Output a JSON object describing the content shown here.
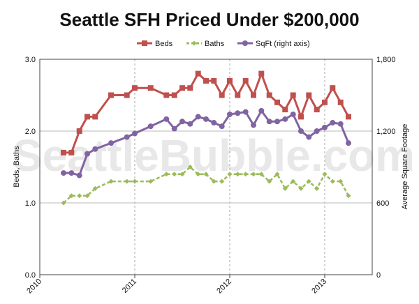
{
  "watermark": "SeattleBubble.com",
  "chart_data": {
    "type": "line",
    "title": "Seattle SFH Priced Under $200,000",
    "ylabel": "Beds, Baths",
    "y2label": "Average Square Footage",
    "ylim": [
      0,
      3
    ],
    "y2lim": [
      0,
      1800
    ],
    "yticks": [
      0,
      1,
      2,
      3
    ],
    "ytick_labels": [
      "0.0",
      "1.0",
      "2.0",
      "3.0"
    ],
    "y2ticks": [
      0,
      600,
      1200,
      1800
    ],
    "y2tick_labels": [
      "0",
      "600",
      "1,200",
      "1,800"
    ],
    "xlim": [
      2010.0,
      2013.5
    ],
    "xticks": [
      2010,
      2011,
      2012,
      2013
    ],
    "xtick_labels": [
      "2010",
      "2011",
      "2012",
      "2013"
    ],
    "grid": true,
    "legend_position": "top",
    "x": [
      2010.25,
      2010.333,
      2010.417,
      2010.5,
      2010.583,
      2010.75,
      2010.917,
      2011.0,
      2011.167,
      2011.333,
      2011.417,
      2011.5,
      2011.583,
      2011.667,
      2011.75,
      2011.833,
      2011.917,
      2012.0,
      2012.083,
      2012.167,
      2012.25,
      2012.333,
      2012.417,
      2012.5,
      2012.583,
      2012.667,
      2012.75,
      2012.833,
      2012.917,
      2013.0,
      2013.083,
      2013.167,
      2013.25
    ],
    "series": [
      {
        "name": "Beds",
        "axis": "left",
        "color": "#c0504d",
        "marker": "square",
        "values": [
          1.7,
          1.7,
          2.0,
          2.2,
          2.2,
          2.5,
          2.5,
          2.6,
          2.6,
          2.5,
          2.5,
          2.6,
          2.6,
          2.8,
          2.7,
          2.7,
          2.5,
          2.7,
          2.5,
          2.7,
          2.5,
          2.8,
          2.5,
          2.4,
          2.3,
          2.5,
          2.2,
          2.5,
          2.3,
          2.4,
          2.6,
          2.4,
          2.2
        ]
      },
      {
        "name": "Baths",
        "axis": "left",
        "color": "#9bbb59",
        "marker": "diamond",
        "values": [
          1.0,
          1.1,
          1.1,
          1.1,
          1.2,
          1.3,
          1.3,
          1.3,
          1.3,
          1.4,
          1.4,
          1.4,
          1.5,
          1.4,
          1.4,
          1.3,
          1.3,
          1.4,
          1.4,
          1.4,
          1.4,
          1.4,
          1.3,
          1.4,
          1.2,
          1.3,
          1.2,
          1.3,
          1.2,
          1.4,
          1.3,
          1.3,
          1.1
        ]
      },
      {
        "name": "SqFt (right axis)",
        "axis": "right",
        "color": "#8064a2",
        "marker": "circle",
        "values": [
          850,
          850,
          830,
          1010,
          1050,
          1100,
          1150,
          1180,
          1240,
          1300,
          1220,
          1280,
          1260,
          1320,
          1300,
          1270,
          1240,
          1340,
          1350,
          1360,
          1250,
          1370,
          1280,
          1280,
          1300,
          1340,
          1200,
          1150,
          1200,
          1230,
          1270,
          1260,
          1100
        ]
      }
    ]
  }
}
